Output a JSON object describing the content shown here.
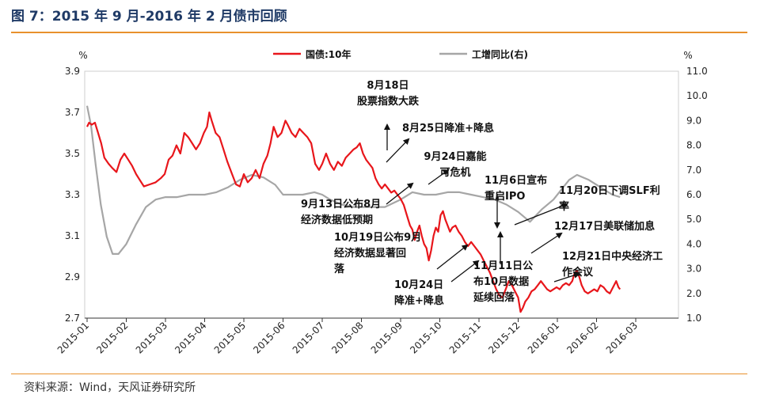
{
  "figure_title": "图 7：2015 年 9 月-2016 年 2 月债市回顾",
  "source": "资料来源：Wind，天风证券研究所",
  "colors": {
    "bond": "#e8161b",
    "ip": "#a6a6a6",
    "rule": "#e8912d",
    "title": "#1f3a66"
  },
  "chart_data": {
    "type": "line",
    "left_unit": "%",
    "right_unit": "%",
    "y_left": {
      "min": 2.7,
      "max": 3.9,
      "ticks": [
        "2.7",
        "2.9",
        "3.1",
        "3.3",
        "3.5",
        "3.7",
        "3.9"
      ]
    },
    "y_right": {
      "min": 1.0,
      "max": 11.0,
      "ticks": [
        "1.0",
        "2.0",
        "3.0",
        "4.0",
        "5.0",
        "6.0",
        "7.0",
        "8.0",
        "9.0",
        "10.0",
        "11.0"
      ]
    },
    "x_ticks": [
      "2015-01",
      "2015-02",
      "2015-03",
      "2015-04",
      "2015-05",
      "2015-06",
      "2015-07",
      "2015-08",
      "2015-09",
      "2015-10",
      "2015-11",
      "2015-12",
      "2016-01",
      "2016-02",
      "2016-03"
    ],
    "series": [
      {
        "name": "国债:10年",
        "axis": "left",
        "points": [
          [
            0.0,
            3.63
          ],
          [
            0.05,
            3.65
          ],
          [
            0.12,
            3.64
          ],
          [
            0.2,
            3.65
          ],
          [
            0.28,
            3.6
          ],
          [
            0.36,
            3.55
          ],
          [
            0.44,
            3.48
          ],
          [
            0.55,
            3.45
          ],
          [
            0.64,
            3.43
          ],
          [
            0.75,
            3.41
          ],
          [
            0.85,
            3.47
          ],
          [
            0.95,
            3.5
          ],
          [
            1.05,
            3.47
          ],
          [
            1.15,
            3.44
          ],
          [
            1.25,
            3.4
          ],
          [
            1.35,
            3.37
          ],
          [
            1.45,
            3.34
          ],
          [
            1.6,
            3.35
          ],
          [
            1.75,
            3.36
          ],
          [
            1.88,
            3.38
          ],
          [
            1.98,
            3.4
          ],
          [
            2.08,
            3.47
          ],
          [
            2.18,
            3.49
          ],
          [
            2.28,
            3.54
          ],
          [
            2.38,
            3.5
          ],
          [
            2.48,
            3.6
          ],
          [
            2.58,
            3.58
          ],
          [
            2.68,
            3.55
          ],
          [
            2.78,
            3.52
          ],
          [
            2.88,
            3.55
          ],
          [
            2.98,
            3.6
          ],
          [
            3.06,
            3.63
          ],
          [
            3.12,
            3.7
          ],
          [
            3.18,
            3.66
          ],
          [
            3.28,
            3.6
          ],
          [
            3.38,
            3.58
          ],
          [
            3.48,
            3.52
          ],
          [
            3.58,
            3.46
          ],
          [
            3.7,
            3.4
          ],
          [
            3.8,
            3.35
          ],
          [
            3.9,
            3.34
          ],
          [
            4.0,
            3.4
          ],
          [
            4.1,
            3.36
          ],
          [
            4.2,
            3.38
          ],
          [
            4.3,
            3.42
          ],
          [
            4.4,
            3.38
          ],
          [
            4.5,
            3.45
          ],
          [
            4.6,
            3.49
          ],
          [
            4.68,
            3.55
          ],
          [
            4.76,
            3.63
          ],
          [
            4.86,
            3.58
          ],
          [
            4.96,
            3.6
          ],
          [
            5.06,
            3.66
          ],
          [
            5.12,
            3.64
          ],
          [
            5.22,
            3.6
          ],
          [
            5.32,
            3.58
          ],
          [
            5.42,
            3.62
          ],
          [
            5.52,
            3.6
          ],
          [
            5.62,
            3.58
          ],
          [
            5.72,
            3.55
          ],
          [
            5.82,
            3.45
          ],
          [
            5.92,
            3.42
          ],
          [
            6.0,
            3.45
          ],
          [
            6.1,
            3.5
          ],
          [
            6.2,
            3.45
          ],
          [
            6.3,
            3.42
          ],
          [
            6.4,
            3.46
          ],
          [
            6.5,
            3.44
          ],
          [
            6.6,
            3.48
          ],
          [
            6.7,
            3.5
          ],
          [
            6.8,
            3.52
          ],
          [
            6.88,
            3.53
          ],
          [
            6.96,
            3.55
          ],
          [
            7.04,
            3.5
          ],
          [
            7.12,
            3.47
          ],
          [
            7.2,
            3.45
          ],
          [
            7.28,
            3.43
          ],
          [
            7.36,
            3.38
          ],
          [
            7.44,
            3.35
          ],
          [
            7.52,
            3.33
          ],
          [
            7.6,
            3.35
          ],
          [
            7.68,
            3.33
          ],
          [
            7.76,
            3.31
          ],
          [
            7.84,
            3.32
          ],
          [
            7.92,
            3.3
          ],
          [
            8.0,
            3.28
          ],
          [
            8.08,
            3.25
          ],
          [
            8.16,
            3.2
          ],
          [
            8.24,
            3.15
          ],
          [
            8.3,
            3.13
          ],
          [
            8.36,
            3.08
          ],
          [
            8.42,
            3.12
          ],
          [
            8.48,
            3.15
          ],
          [
            8.54,
            3.1
          ],
          [
            8.6,
            3.06
          ],
          [
            8.66,
            3.04
          ],
          [
            8.72,
            2.98
          ],
          [
            8.78,
            3.03
          ],
          [
            8.84,
            3.1
          ],
          [
            8.9,
            3.14
          ],
          [
            8.96,
            3.12
          ],
          [
            9.02,
            3.2
          ],
          [
            9.08,
            3.22
          ],
          [
            9.14,
            3.18
          ],
          [
            9.2,
            3.15
          ],
          [
            9.26,
            3.12
          ],
          [
            9.32,
            3.14
          ],
          [
            9.4,
            3.15
          ],
          [
            9.48,
            3.12
          ],
          [
            9.56,
            3.1
          ],
          [
            9.64,
            3.07
          ],
          [
            9.72,
            3.05
          ],
          [
            9.8,
            3.07
          ],
          [
            9.88,
            3.05
          ],
          [
            9.96,
            3.03
          ],
          [
            10.04,
            3.01
          ],
          [
            10.12,
            2.98
          ],
          [
            10.2,
            2.95
          ],
          [
            10.28,
            2.92
          ],
          [
            10.36,
            2.88
          ],
          [
            10.44,
            2.84
          ],
          [
            10.52,
            2.81
          ],
          [
            10.6,
            2.8
          ],
          [
            10.68,
            2.84
          ],
          [
            10.76,
            2.88
          ],
          [
            10.84,
            2.86
          ],
          [
            10.92,
            2.83
          ],
          [
            11.0,
            2.8
          ],
          [
            11.06,
            2.73
          ],
          [
            11.12,
            2.75
          ],
          [
            11.18,
            2.78
          ],
          [
            11.26,
            2.8
          ],
          [
            11.34,
            2.83
          ],
          [
            11.42,
            2.84
          ],
          [
            11.5,
            2.86
          ],
          [
            11.58,
            2.88
          ],
          [
            11.66,
            2.86
          ],
          [
            11.74,
            2.84
          ],
          [
            11.82,
            2.83
          ],
          [
            11.9,
            2.84
          ],
          [
            11.98,
            2.85
          ],
          [
            12.06,
            2.84
          ],
          [
            12.14,
            2.86
          ],
          [
            12.22,
            2.87
          ],
          [
            12.3,
            2.86
          ],
          [
            12.38,
            2.88
          ],
          [
            12.44,
            2.92
          ],
          [
            12.5,
            2.93
          ],
          [
            12.56,
            2.9
          ],
          [
            12.62,
            2.86
          ],
          [
            12.7,
            2.83
          ],
          [
            12.78,
            2.82
          ],
          [
            12.86,
            2.83
          ],
          [
            12.94,
            2.84
          ],
          [
            13.02,
            2.83
          ],
          [
            13.1,
            2.86
          ],
          [
            13.18,
            2.85
          ],
          [
            13.26,
            2.83
          ],
          [
            13.34,
            2.82
          ],
          [
            13.42,
            2.85
          ],
          [
            13.5,
            2.88
          ],
          [
            13.56,
            2.85
          ],
          [
            13.6,
            2.84
          ]
        ]
      },
      {
        "name": "工增同比(右)",
        "axis": "right",
        "points": [
          [
            0.0,
            9.6
          ],
          [
            0.1,
            8.8
          ],
          [
            0.22,
            7.2
          ],
          [
            0.35,
            5.6
          ],
          [
            0.5,
            4.3
          ],
          [
            0.65,
            3.6
          ],
          [
            0.8,
            3.6
          ],
          [
            1.0,
            4.0
          ],
          [
            1.25,
            4.8
          ],
          [
            1.5,
            5.5
          ],
          [
            1.75,
            5.8
          ],
          [
            2.0,
            5.9
          ],
          [
            2.3,
            5.9
          ],
          [
            2.6,
            6.0
          ],
          [
            3.0,
            6.0
          ],
          [
            3.3,
            6.1
          ],
          [
            3.6,
            6.3
          ],
          [
            3.9,
            6.6
          ],
          [
            4.2,
            6.8
          ],
          [
            4.5,
            6.7
          ],
          [
            4.8,
            6.4
          ],
          [
            5.0,
            6.0
          ],
          [
            5.2,
            6.0
          ],
          [
            5.5,
            6.0
          ],
          [
            5.8,
            6.1
          ],
          [
            6.0,
            6.0
          ],
          [
            6.2,
            5.8
          ],
          [
            6.5,
            5.6
          ],
          [
            6.8,
            5.5
          ],
          [
            7.2,
            5.5
          ],
          [
            7.6,
            5.5
          ],
          [
            8.0,
            5.8
          ],
          [
            8.3,
            6.1
          ],
          [
            8.6,
            6.0
          ],
          [
            8.9,
            6.0
          ],
          [
            9.2,
            6.1
          ],
          [
            9.5,
            6.1
          ],
          [
            9.8,
            6.0
          ],
          [
            10.1,
            5.9
          ],
          [
            10.4,
            5.8
          ],
          [
            10.7,
            5.6
          ],
          [
            11.0,
            5.3
          ],
          [
            11.3,
            4.9
          ],
          [
            11.6,
            5.4
          ],
          [
            11.9,
            5.8
          ],
          [
            12.1,
            6.2
          ],
          [
            12.3,
            6.6
          ],
          [
            12.5,
            6.8
          ],
          [
            12.8,
            6.6
          ],
          [
            13.1,
            6.3
          ],
          [
            13.4,
            6.0
          ],
          [
            13.6,
            5.9
          ]
        ]
      }
    ],
    "annotations": [
      {
        "lines": [
          "8月18日",
          "股票指数大跌"
        ],
        "arrow": "up"
      },
      {
        "lines": [
          "8月25日降准+降息"
        ],
        "arrow": "diag"
      },
      {
        "lines": [
          "9月24日嘉能",
          "可危机"
        ],
        "arrow": "diag"
      },
      {
        "lines": [
          "9月13日公布8月",
          "经济数据低预期"
        ],
        "arrow": "diag"
      },
      {
        "lines": [
          "11月6日宣布",
          "重启IPO"
        ],
        "arrow": "down"
      },
      {
        "lines": [
          "11月20日下调SLF利",
          "率"
        ],
        "arrow": "diag"
      },
      {
        "lines": [
          "10月19日公布9月",
          "经济数据显著回",
          "落"
        ],
        "arrow": "diag"
      },
      {
        "lines": [
          "12月17日美联储加息"
        ],
        "arrow": "diag"
      },
      {
        "lines": [
          "11月11日公",
          "布10月数据",
          "延续回落"
        ],
        "arrow": "up"
      },
      {
        "lines": [
          "10月24日",
          "降准+降息"
        ],
        "arrow": "diag"
      },
      {
        "lines": [
          "12月21日中央经济工",
          "作会议"
        ],
        "arrow": "diag"
      }
    ]
  }
}
